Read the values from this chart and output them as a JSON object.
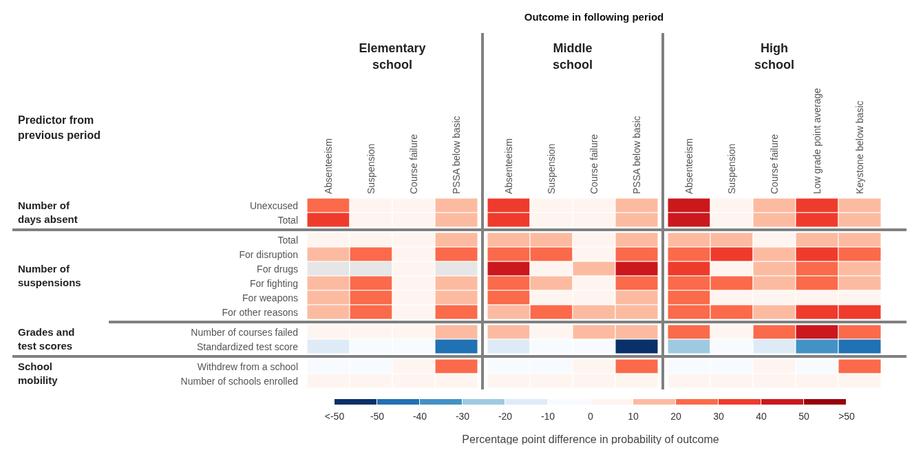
{
  "chart_data": {
    "type": "heatmap",
    "title": "Outcome in following period",
    "clabel": "Percentage point difference in probability of outcome",
    "annotations": [
      "Predictor from previous period",
      "Elementary school",
      "Middle school",
      "High school",
      "Number of days absent",
      "Number of suspensions",
      "Grades and test scores",
      "School mobility"
    ],
    "categories": [
      "Absenteeism",
      "Suspension",
      "Course failure",
      "PSSA below basic",
      "Absenteeism",
      "Suspension",
      "Course failure",
      "PSSA below basic",
      "Absenteeism",
      "Suspension",
      "Course failure",
      "Low grade point average",
      "Keystone below basic"
    ],
    "y_categories": [
      "Unexcused",
      "Total",
      "Total",
      "For disruption",
      "For drugs",
      "For fighting",
      "For weapons",
      "For other reasons",
      "Number of courses failed",
      "Standardized test score",
      "Withdrew from a school",
      "Number of schools enrolled"
    ],
    "cells": [
      [
        25,
        5,
        5,
        15,
        35,
        5,
        5,
        15,
        45,
        5,
        15,
        35,
        15
      ],
      [
        35,
        5,
        5,
        15,
        35,
        5,
        5,
        15,
        45,
        5,
        15,
        35,
        15
      ],
      [
        5,
        5,
        5,
        15,
        15,
        15,
        5,
        15,
        15,
        15,
        5,
        15,
        15
      ],
      [
        15,
        25,
        5,
        25,
        25,
        25,
        5,
        25,
        25,
        35,
        15,
        35,
        25
      ],
      [
        null,
        null,
        5,
        null,
        45,
        5,
        15,
        45,
        35,
        5,
        15,
        25,
        15
      ],
      [
        15,
        25,
        5,
        15,
        25,
        15,
        5,
        25,
        25,
        25,
        15,
        25,
        15
      ],
      [
        15,
        25,
        5,
        15,
        25,
        5,
        5,
        15,
        25,
        5,
        5,
        5,
        5
      ],
      [
        15,
        25,
        5,
        25,
        15,
        25,
        15,
        15,
        25,
        25,
        15,
        35,
        35
      ],
      [
        5,
        5,
        5,
        15,
        15,
        5,
        15,
        15,
        25,
        5,
        25,
        45,
        25
      ],
      [
        -15,
        -5,
        -5,
        -45,
        -15,
        -5,
        -5,
        -55,
        -25,
        -5,
        -15,
        -35,
        -45
      ],
      [
        -5,
        -5,
        5,
        25,
        -5,
        -5,
        5,
        25,
        -5,
        -5,
        5,
        -5,
        25
      ],
      [
        5,
        5,
        5,
        5,
        5,
        5,
        5,
        5,
        5,
        5,
        5,
        5,
        5
      ]
    ],
    "clim": [
      -60,
      60
    ],
    "cticks": [
      {
        "value": -60,
        "label": "<-50"
      },
      -50,
      -40,
      -30,
      -20,
      -10,
      0,
      10,
      20,
      30,
      40,
      50,
      {
        "value": 60,
        "label": ">50"
      }
    ]
  }
}
